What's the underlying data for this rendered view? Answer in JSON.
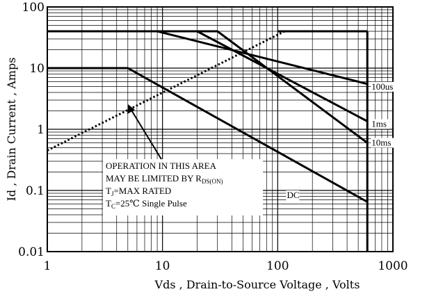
{
  "chart_data": {
    "type": "line",
    "title": "",
    "xlabel": "Vds , Drain-to-Source Voltage , Volts",
    "ylabel": "Id , Drain Current , Amps",
    "xscale": "log",
    "yscale": "log",
    "xlim": [
      1,
      1000
    ],
    "ylim": [
      0.01,
      100
    ],
    "grid": true,
    "x_ticks": [
      "1",
      "10",
      "100",
      "1000"
    ],
    "y_ticks": [
      "0.01",
      "0.1",
      "1",
      "10",
      "100"
    ],
    "series": [
      {
        "name": "100us",
        "style": "solid",
        "x": [
          1,
          9,
          600
        ],
        "y": [
          40,
          40,
          5.5
        ]
      },
      {
        "name": "1ms",
        "style": "solid",
        "x": [
          1,
          20,
          600
        ],
        "y": [
          40,
          40,
          1.35
        ]
      },
      {
        "name": "10ms",
        "style": "solid",
        "x": [
          1,
          30,
          600
        ],
        "y": [
          40,
          40,
          0.6
        ]
      },
      {
        "name": "",
        "style": "solid",
        "x": [
          100,
          600
        ],
        "y": [
          40,
          40
        ]
      },
      {
        "name": "DC",
        "style": "solid",
        "x": [
          1,
          5,
          600
        ],
        "y": [
          10,
          10,
          0.065
        ]
      },
      {
        "name": "",
        "style": "dotted",
        "x": [
          1,
          115
        ],
        "y": [
          0.45,
          40
        ]
      },
      {
        "name": "",
        "style": "solid",
        "x": [
          600,
          600
        ],
        "y": [
          0.01,
          40
        ]
      }
    ],
    "annotation_lines": [
      "OPERATION IN THIS AREA",
      "MAY BE LIMITED BY R",
      "DS(ON)",
      "T",
      "J",
      "=MAX RATED",
      "T",
      "C",
      "=25℃  Single Pulse"
    ]
  }
}
